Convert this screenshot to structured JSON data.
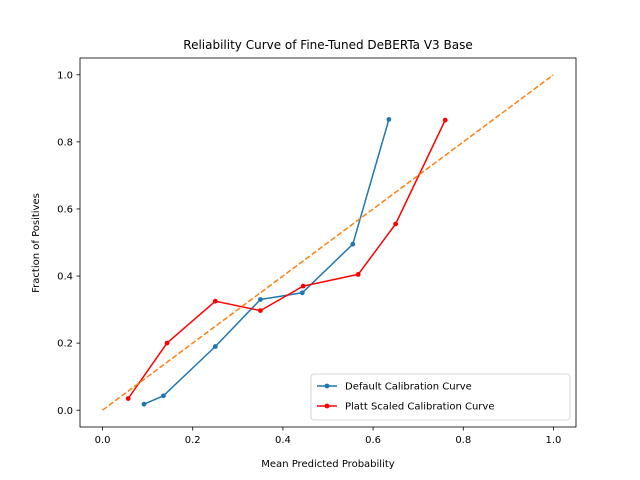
{
  "chart_data": {
    "type": "line",
    "title": "Reliability Curve of Fine-Tuned DeBERTa V3 Base",
    "xlabel": "Mean Predicted Probability",
    "ylabel": "Fraction of Positives",
    "xlim": [
      -0.05,
      1.05
    ],
    "ylim": [
      -0.05,
      1.05
    ],
    "xticks": [
      "0.0",
      "0.2",
      "0.4",
      "0.6",
      "0.8",
      "1.0"
    ],
    "yticks": [
      "0.0",
      "0.2",
      "0.4",
      "0.6",
      "0.8",
      "1.0"
    ],
    "grid": false,
    "legend_position": "lower-right",
    "series": [
      {
        "name": "Default Calibration Curve",
        "color": "#1f77b4",
        "style": "solid",
        "marker": "dot",
        "x": [
          0.092,
          0.135,
          0.25,
          0.35,
          0.443,
          0.555,
          0.635
        ],
        "y": [
          0.018,
          0.043,
          0.19,
          0.33,
          0.35,
          0.495,
          0.867
        ]
      },
      {
        "name": "Platt Scaled Calibration Curve",
        "color": "#ff0000",
        "style": "solid",
        "marker": "dot",
        "x": [
          0.057,
          0.143,
          0.25,
          0.35,
          0.445,
          0.567,
          0.65,
          0.76
        ],
        "y": [
          0.035,
          0.2,
          0.325,
          0.297,
          0.37,
          0.405,
          0.555,
          0.865
        ]
      },
      {
        "name": "",
        "color": "#ff7f0e",
        "style": "dashed",
        "marker": "none",
        "legend": false,
        "x": [
          0,
          1
        ],
        "y": [
          0,
          1
        ]
      }
    ]
  }
}
